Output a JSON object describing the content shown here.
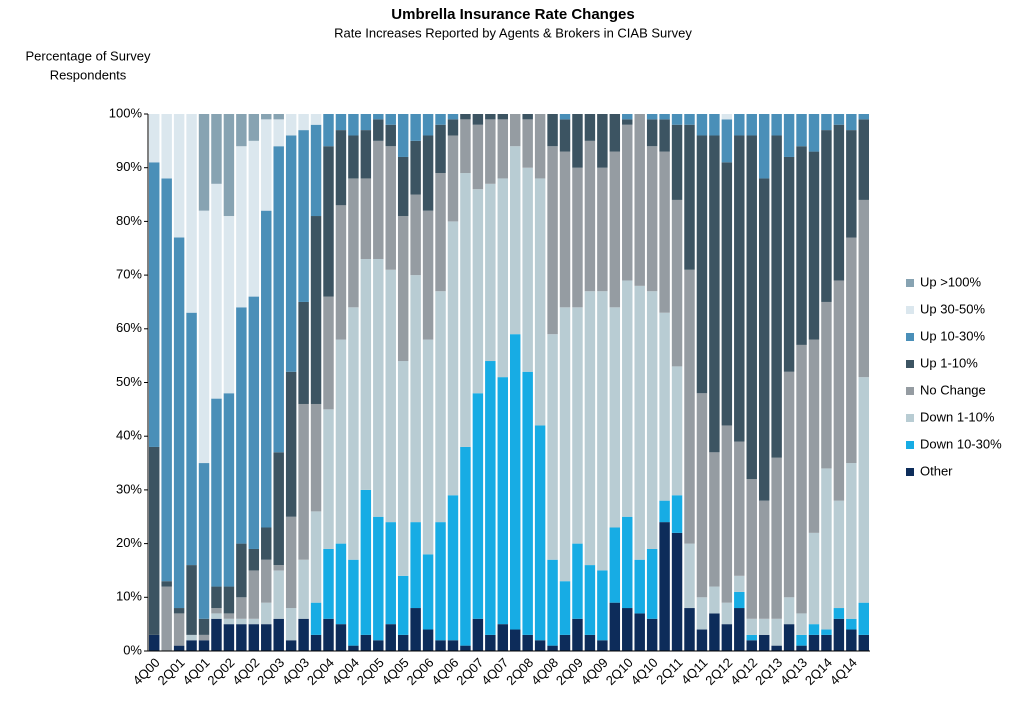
{
  "chart_data": {
    "type": "stacked_bar",
    "title": "Umbrella Insurance Rate Changes",
    "subtitle": "Rate Increases Reported by Agents & Brokers in CIAB Survey",
    "y_label": [
      "Percentage of Survey",
      "Respondents"
    ],
    "categories": [
      "4Q00",
      null,
      "2Q01",
      null,
      "4Q01",
      null,
      "2Q02",
      null,
      "4Q02",
      null,
      "2Q03",
      null,
      "4Q03",
      null,
      "2Q04",
      null,
      "4Q04",
      null,
      "2Q05",
      null,
      "4Q05",
      null,
      "2Q06",
      null,
      "4Q06",
      null,
      "2Q07",
      null,
      "4Q07",
      null,
      "2Q08",
      null,
      "4Q08",
      null,
      "2Q09",
      null,
      "4Q09",
      null,
      "2Q10",
      null,
      "4Q10",
      null,
      "2Q11",
      null,
      "4Q11",
      null,
      "2Q12",
      null,
      "4Q12",
      null,
      "2Q13",
      null,
      "4Q13",
      null,
      "2Q14",
      null,
      "4Q14",
      null
    ],
    "series": [
      {
        "name": "Other",
        "color": "#0d2c5a",
        "values": [
          3,
          0,
          1,
          2,
          2,
          6,
          5,
          5,
          5,
          5,
          6,
          2,
          6,
          3,
          6,
          5,
          1,
          3,
          2,
          5,
          3,
          8,
          4,
          2,
          2,
          1,
          6,
          3,
          5,
          4,
          3,
          2,
          1,
          3,
          6,
          3,
          2,
          9,
          8,
          7,
          6,
          24,
          22,
          8,
          4,
          7,
          5,
          8,
          2,
          3,
          1,
          5,
          1,
          3,
          3,
          6,
          4,
          3
        ]
      },
      {
        "name": "Down 10-30%",
        "color": "#17ace4",
        "values": [
          0,
          0,
          0,
          0,
          0,
          0,
          0,
          0,
          0,
          0,
          0,
          0,
          0,
          6,
          13,
          15,
          16,
          27,
          23,
          19,
          11,
          16,
          14,
          22,
          27,
          37,
          42,
          51,
          46,
          55,
          49,
          40,
          16,
          10,
          14,
          13,
          13,
          14,
          17,
          10,
          13,
          4,
          7,
          0,
          0,
          0,
          0,
          3,
          1,
          0,
          0,
          0,
          2,
          2,
          1,
          2,
          2,
          6
        ]
      },
      {
        "name": "Down 1-10%",
        "color": "#b8ccd3",
        "values": [
          0,
          0,
          0,
          1,
          0,
          1,
          1,
          1,
          1,
          4,
          9,
          6,
          11,
          17,
          26,
          38,
          47,
          43,
          48,
          47,
          40,
          46,
          40,
          43,
          51,
          51,
          38,
          33,
          37,
          35,
          38,
          46,
          42,
          51,
          44,
          51,
          52,
          41,
          44,
          51,
          48,
          35,
          24,
          12,
          6,
          5,
          4,
          3,
          3,
          3,
          5,
          5,
          4,
          17,
          30,
          20,
          29,
          42
        ]
      },
      {
        "name": "No Change",
        "color": "#959ca2",
        "values": [
          0,
          12,
          6,
          0,
          1,
          1,
          1,
          4,
          9,
          8,
          1,
          17,
          29,
          20,
          21,
          25,
          24,
          15,
          22,
          23,
          27,
          15,
          24,
          22,
          16,
          10,
          12,
          12,
          11,
          6,
          9,
          12,
          35,
          29,
          26,
          28,
          23,
          29,
          29,
          32,
          27,
          30,
          31,
          51,
          38,
          25,
          33,
          25,
          26,
          22,
          30,
          42,
          50,
          36,
          31,
          41,
          42,
          33
        ]
      },
      {
        "name": "Up 1-10%",
        "color": "#3c5462",
        "values": [
          35,
          1,
          1,
          13,
          3,
          4,
          5,
          10,
          4,
          6,
          21,
          27,
          19,
          35,
          28,
          14,
          8,
          9,
          4,
          4,
          11,
          10,
          14,
          9,
          3,
          1,
          2,
          1,
          1,
          0,
          1,
          0,
          6,
          6,
          10,
          5,
          10,
          7,
          1,
          0,
          5,
          6,
          14,
          27,
          48,
          59,
          49,
          57,
          64,
          60,
          60,
          40,
          37,
          35,
          32,
          29,
          20,
          15
        ]
      },
      {
        "name": "Up 10-30%",
        "color": "#4a8fb8",
        "values": [
          53,
          75,
          69,
          47,
          29,
          35,
          36,
          44,
          47,
          59,
          57,
          44,
          32,
          17,
          6,
          3,
          4,
          3,
          1,
          2,
          8,
          5,
          4,
          2,
          1,
          0,
          0,
          0,
          0,
          0,
          0,
          0,
          0,
          1,
          0,
          0,
          0,
          0,
          1,
          0,
          1,
          1,
          2,
          2,
          4,
          4,
          8,
          4,
          4,
          12,
          4,
          8,
          6,
          7,
          3,
          2,
          3,
          1
        ]
      },
      {
        "name": "Up 30-50%",
        "color": "#dbe7ee",
        "values": [
          9,
          12,
          23,
          37,
          47,
          40,
          33,
          30,
          29,
          17,
          5,
          4,
          3,
          2,
          0,
          0,
          0,
          0,
          0,
          0,
          0,
          0,
          0,
          0,
          0,
          0,
          0,
          0,
          0,
          0,
          0,
          0,
          0,
          0,
          0,
          0,
          0,
          0,
          0,
          0,
          0,
          0,
          0,
          0,
          0,
          0,
          1,
          0,
          0,
          0,
          0,
          0,
          0,
          0,
          0,
          0,
          0,
          0
        ]
      },
      {
        "name": "Up >100%",
        "color": "#87a3b2",
        "values": [
          0,
          0,
          0,
          0,
          18,
          13,
          19,
          6,
          5,
          1,
          1,
          0,
          0,
          0,
          0,
          0,
          0,
          0,
          0,
          0,
          0,
          0,
          0,
          0,
          0,
          0,
          0,
          0,
          0,
          0,
          0,
          0,
          0,
          0,
          0,
          0,
          0,
          0,
          0,
          0,
          0,
          0,
          0,
          0,
          0,
          0,
          0,
          0,
          0,
          0,
          0,
          0,
          0,
          0,
          0,
          0,
          0,
          0
        ]
      }
    ],
    "ylim": [
      0,
      100
    ],
    "yticks": [
      {
        "value": 0,
        "label": "0%"
      },
      {
        "value": 10,
        "label": "10%"
      },
      {
        "value": 20,
        "label": "20%"
      },
      {
        "value": 30,
        "label": "30%"
      },
      {
        "value": 40,
        "label": "40%"
      },
      {
        "value": 50,
        "label": "50%"
      },
      {
        "value": 60,
        "label": "60%"
      },
      {
        "value": 70,
        "label": "70%"
      },
      {
        "value": 80,
        "label": "80%"
      },
      {
        "value": 90,
        "label": "90%"
      },
      {
        "value": 100,
        "label": "100%"
      }
    ],
    "legend": "right"
  }
}
